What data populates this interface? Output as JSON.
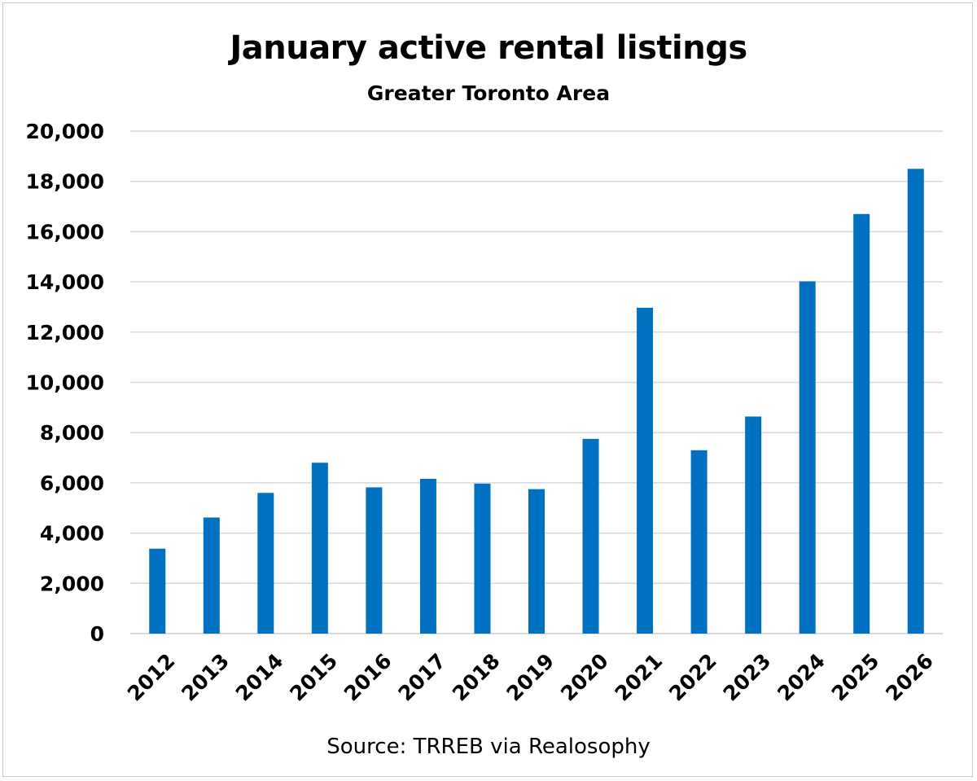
{
  "chart_data": {
    "type": "bar",
    "title": "January active rental listings",
    "subtitle": "Greater Toronto Area",
    "source": "Source: TRREB via Realosophy",
    "categories": [
      "2012",
      "2013",
      "2014",
      "2015",
      "2016",
      "2017",
      "2018",
      "2019",
      "2020",
      "2021",
      "2022",
      "2023",
      "2024",
      "2025",
      "2026"
    ],
    "values": [
      3380,
      4620,
      5600,
      6800,
      5820,
      6160,
      5970,
      5750,
      7750,
      12970,
      7300,
      8640,
      14020,
      16700,
      18500
    ],
    "ylim": [
      0,
      20000
    ],
    "yticks": [
      "0",
      "2,000",
      "4,000",
      "6,000",
      "8,000",
      "10,000",
      "12,000",
      "14,000",
      "16,000",
      "18,000",
      "20,000"
    ],
    "grid": true,
    "bar_color": "#0070C0",
    "grid_color": "#d9d9d9"
  }
}
